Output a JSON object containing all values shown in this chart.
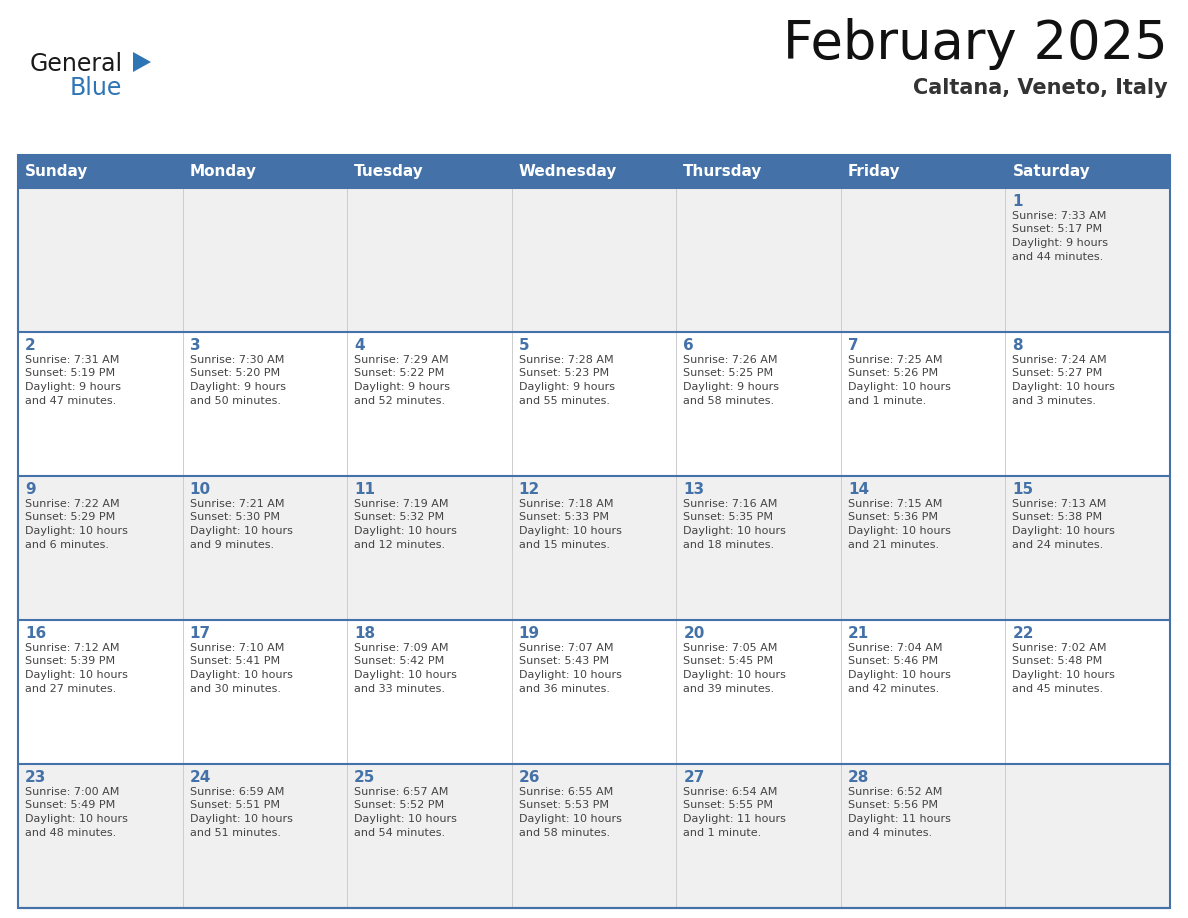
{
  "title": "February 2025",
  "subtitle": "Caltana, Veneto, Italy",
  "days_of_week": [
    "Sunday",
    "Monday",
    "Tuesday",
    "Wednesday",
    "Thursday",
    "Friday",
    "Saturday"
  ],
  "header_bg": "#4472a8",
  "header_text": "#ffffff",
  "row_bg_light": "#f0f0f0",
  "row_bg_white": "#ffffff",
  "border_color": "#4472a8",
  "day_number_color": "#4472a8",
  "text_color": "#444444",
  "title_color": "#111111",
  "subtitle_color": "#333333",
  "logo_general_color": "#1a1a1a",
  "logo_blue_color": "#2e75b6",
  "days": [
    {
      "day": 1,
      "col": 6,
      "row": 0,
      "sunrise": "7:33 AM",
      "sunset": "5:17 PM",
      "daylight": "9 hours and 44 minutes"
    },
    {
      "day": 2,
      "col": 0,
      "row": 1,
      "sunrise": "7:31 AM",
      "sunset": "5:19 PM",
      "daylight": "9 hours and 47 minutes"
    },
    {
      "day": 3,
      "col": 1,
      "row": 1,
      "sunrise": "7:30 AM",
      "sunset": "5:20 PM",
      "daylight": "9 hours and 50 minutes"
    },
    {
      "day": 4,
      "col": 2,
      "row": 1,
      "sunrise": "7:29 AM",
      "sunset": "5:22 PM",
      "daylight": "9 hours and 52 minutes"
    },
    {
      "day": 5,
      "col": 3,
      "row": 1,
      "sunrise": "7:28 AM",
      "sunset": "5:23 PM",
      "daylight": "9 hours and 55 minutes"
    },
    {
      "day": 6,
      "col": 4,
      "row": 1,
      "sunrise": "7:26 AM",
      "sunset": "5:25 PM",
      "daylight": "9 hours and 58 minutes"
    },
    {
      "day": 7,
      "col": 5,
      "row": 1,
      "sunrise": "7:25 AM",
      "sunset": "5:26 PM",
      "daylight": "10 hours and 1 minute"
    },
    {
      "day": 8,
      "col": 6,
      "row": 1,
      "sunrise": "7:24 AM",
      "sunset": "5:27 PM",
      "daylight": "10 hours and 3 minutes"
    },
    {
      "day": 9,
      "col": 0,
      "row": 2,
      "sunrise": "7:22 AM",
      "sunset": "5:29 PM",
      "daylight": "10 hours and 6 minutes"
    },
    {
      "day": 10,
      "col": 1,
      "row": 2,
      "sunrise": "7:21 AM",
      "sunset": "5:30 PM",
      "daylight": "10 hours and 9 minutes"
    },
    {
      "day": 11,
      "col": 2,
      "row": 2,
      "sunrise": "7:19 AM",
      "sunset": "5:32 PM",
      "daylight": "10 hours and 12 minutes"
    },
    {
      "day": 12,
      "col": 3,
      "row": 2,
      "sunrise": "7:18 AM",
      "sunset": "5:33 PM",
      "daylight": "10 hours and 15 minutes"
    },
    {
      "day": 13,
      "col": 4,
      "row": 2,
      "sunrise": "7:16 AM",
      "sunset": "5:35 PM",
      "daylight": "10 hours and 18 minutes"
    },
    {
      "day": 14,
      "col": 5,
      "row": 2,
      "sunrise": "7:15 AM",
      "sunset": "5:36 PM",
      "daylight": "10 hours and 21 minutes"
    },
    {
      "day": 15,
      "col": 6,
      "row": 2,
      "sunrise": "7:13 AM",
      "sunset": "5:38 PM",
      "daylight": "10 hours and 24 minutes"
    },
    {
      "day": 16,
      "col": 0,
      "row": 3,
      "sunrise": "7:12 AM",
      "sunset": "5:39 PM",
      "daylight": "10 hours and 27 minutes"
    },
    {
      "day": 17,
      "col": 1,
      "row": 3,
      "sunrise": "7:10 AM",
      "sunset": "5:41 PM",
      "daylight": "10 hours and 30 minutes"
    },
    {
      "day": 18,
      "col": 2,
      "row": 3,
      "sunrise": "7:09 AM",
      "sunset": "5:42 PM",
      "daylight": "10 hours and 33 minutes"
    },
    {
      "day": 19,
      "col": 3,
      "row": 3,
      "sunrise": "7:07 AM",
      "sunset": "5:43 PM",
      "daylight": "10 hours and 36 minutes"
    },
    {
      "day": 20,
      "col": 4,
      "row": 3,
      "sunrise": "7:05 AM",
      "sunset": "5:45 PM",
      "daylight": "10 hours and 39 minutes"
    },
    {
      "day": 21,
      "col": 5,
      "row": 3,
      "sunrise": "7:04 AM",
      "sunset": "5:46 PM",
      "daylight": "10 hours and 42 minutes"
    },
    {
      "day": 22,
      "col": 6,
      "row": 3,
      "sunrise": "7:02 AM",
      "sunset": "5:48 PM",
      "daylight": "10 hours and 45 minutes"
    },
    {
      "day": 23,
      "col": 0,
      "row": 4,
      "sunrise": "7:00 AM",
      "sunset": "5:49 PM",
      "daylight": "10 hours and 48 minutes"
    },
    {
      "day": 24,
      "col": 1,
      "row": 4,
      "sunrise": "6:59 AM",
      "sunset": "5:51 PM",
      "daylight": "10 hours and 51 minutes"
    },
    {
      "day": 25,
      "col": 2,
      "row": 4,
      "sunrise": "6:57 AM",
      "sunset": "5:52 PM",
      "daylight": "10 hours and 54 minutes"
    },
    {
      "day": 26,
      "col": 3,
      "row": 4,
      "sunrise": "6:55 AM",
      "sunset": "5:53 PM",
      "daylight": "10 hours and 58 minutes"
    },
    {
      "day": 27,
      "col": 4,
      "row": 4,
      "sunrise": "6:54 AM",
      "sunset": "5:55 PM",
      "daylight": "11 hours and 1 minute"
    },
    {
      "day": 28,
      "col": 5,
      "row": 4,
      "sunrise": "6:52 AM",
      "sunset": "5:56 PM",
      "daylight": "11 hours and 4 minutes"
    }
  ]
}
